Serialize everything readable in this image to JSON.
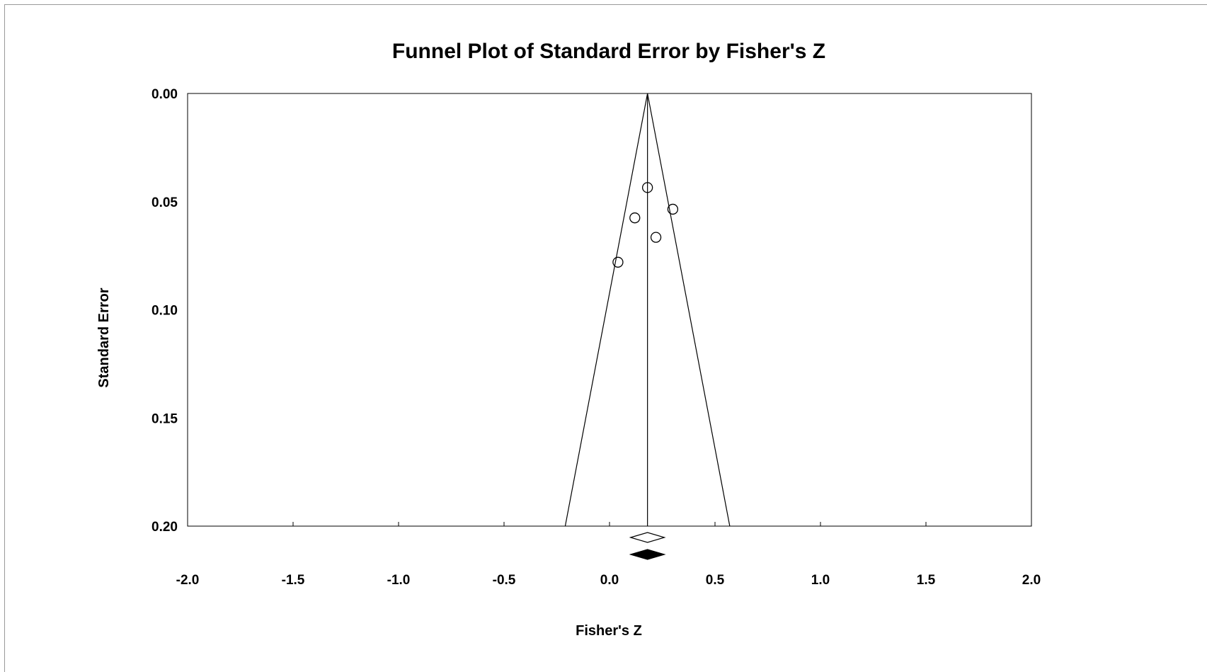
{
  "chart_data": {
    "type": "scatter",
    "title": "Funnel Plot of Standard Error by Fisher's Z",
    "xlabel": "Fisher's Z",
    "ylabel": "Standard Error",
    "xlim": [
      -2.0,
      2.0
    ],
    "ylim": [
      0.0,
      0.2
    ],
    "y_inverted": true,
    "grid": false,
    "legend": "none",
    "x_ticks": [
      "-2.0",
      "-1.5",
      "-1.0",
      "-0.5",
      "0.0",
      "0.5",
      "1.0",
      "1.5",
      "2.0"
    ],
    "y_ticks": [
      "0.00",
      "0.05",
      "0.10",
      "0.15",
      "0.20"
    ],
    "points": [
      {
        "x": 0.18,
        "y": 0.0435
      },
      {
        "x": 0.12,
        "y": 0.0575
      },
      {
        "x": 0.3,
        "y": 0.0535
      },
      {
        "x": 0.22,
        "y": 0.0665
      },
      {
        "x": 0.04,
        "y": 0.078
      }
    ],
    "mean_effect": 0.18,
    "funnel_limits_at_max_se": [
      -0.21,
      0.57
    ],
    "summary_diamonds": [
      {
        "kind": "observed",
        "fill": "#ffffff",
        "center": 0.18,
        "lower": 0.1,
        "upper": 0.26
      },
      {
        "kind": "imputed",
        "fill": "#000000",
        "center": 0.18,
        "lower": 0.1,
        "upper": 0.26
      }
    ],
    "colors": {
      "axis": "#000000",
      "marker_stroke": "#000000",
      "background": "#ffffff"
    }
  }
}
